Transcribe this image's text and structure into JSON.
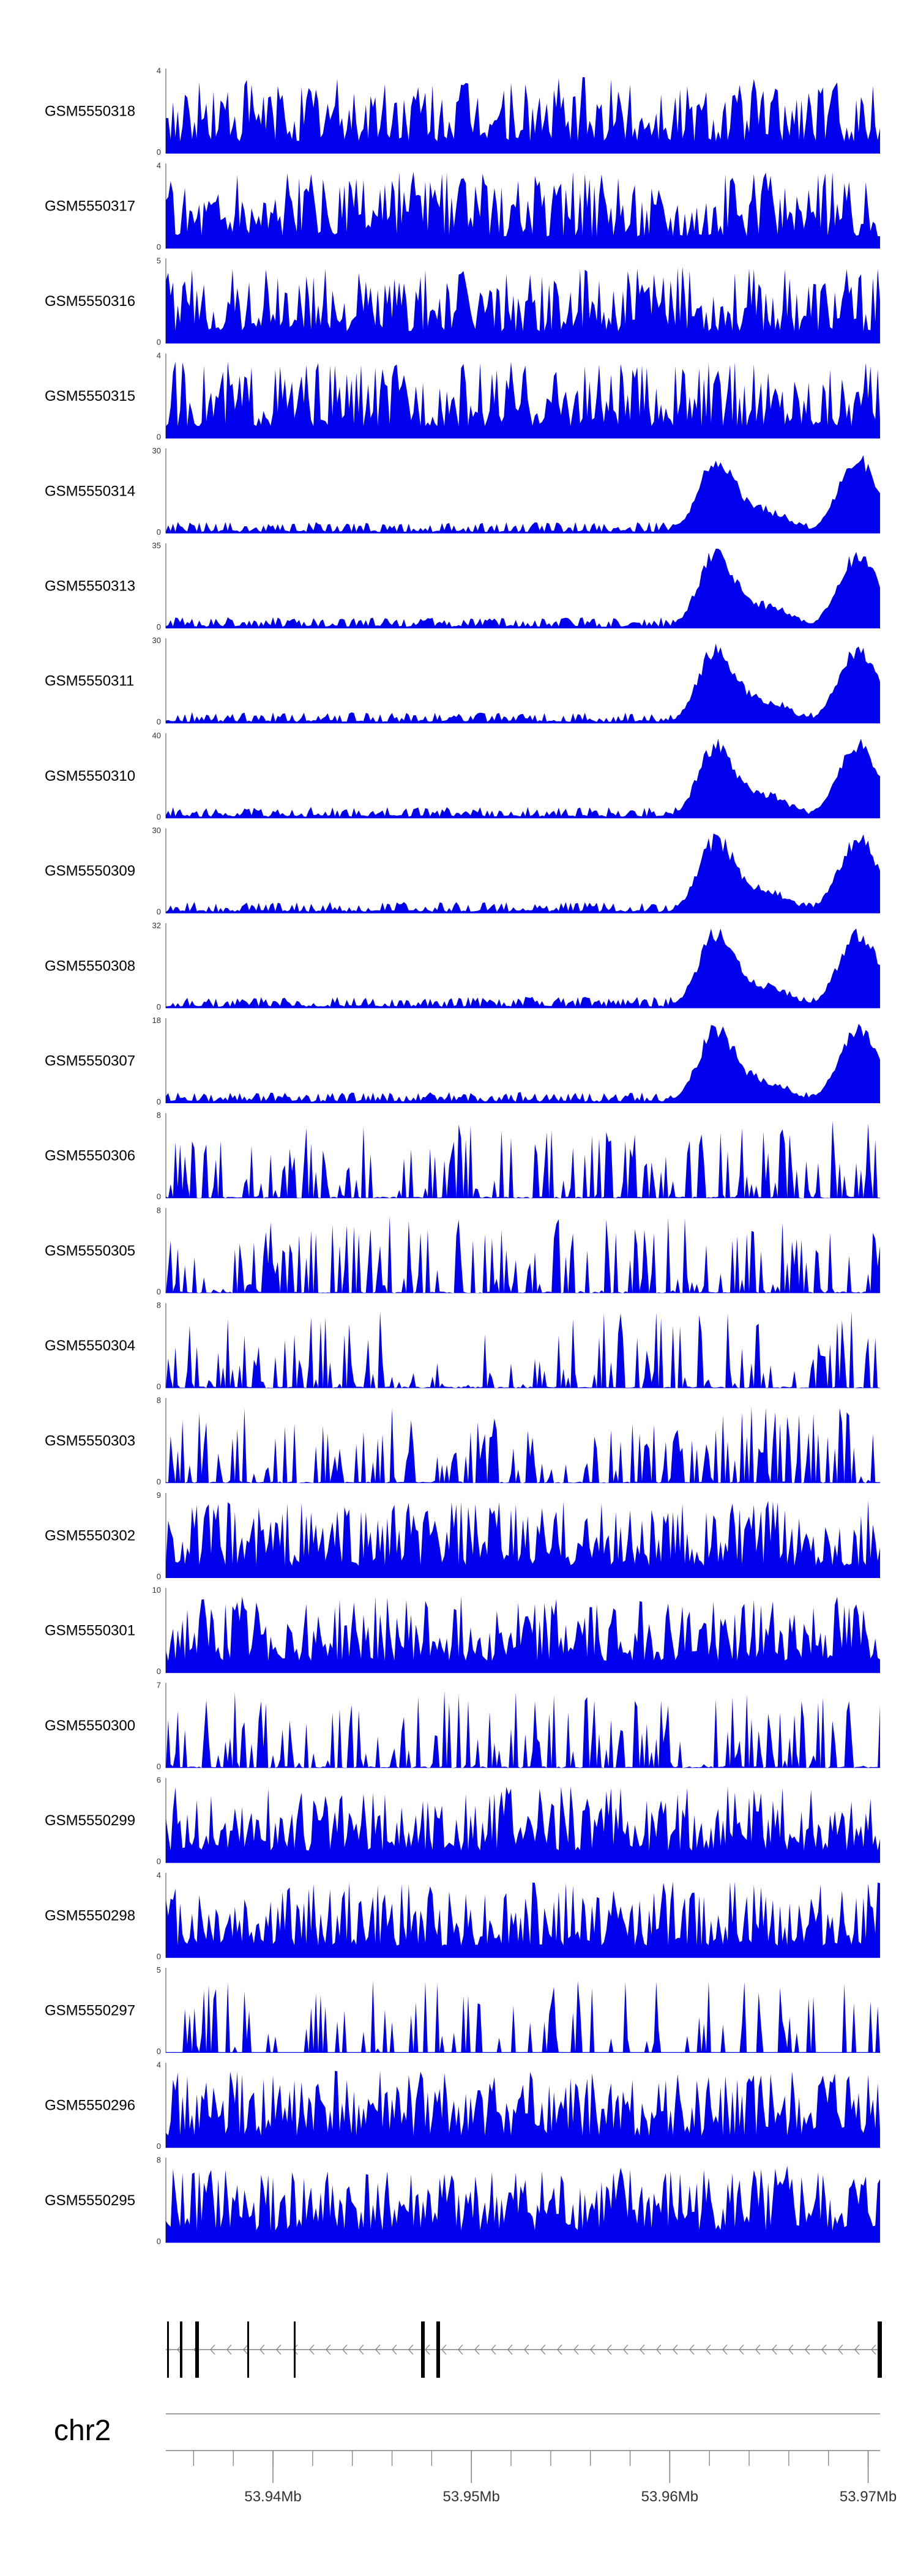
{
  "chart_data": {
    "type": "area",
    "fill_color": "#0000ee",
    "axis_color": "#808080",
    "x_range": [
      53.9346,
      53.9706
    ],
    "chromosome": "chr2",
    "axis_ticks": [
      "53.94Mb",
      "53.95Mb",
      "53.96Mb",
      "53.97Mb"
    ],
    "axis_tick_values": [
      53.94,
      53.95,
      53.96,
      53.97
    ],
    "tracks": [
      {
        "name": "GSM5550318",
        "ymax": "4",
        "ymin": "0",
        "scale": 4,
        "seed": 318,
        "pattern": "uniform"
      },
      {
        "name": "GSM5550317",
        "ymax": "4",
        "ymin": "0",
        "scale": 4,
        "seed": 317,
        "pattern": "uniform"
      },
      {
        "name": "GSM5550316",
        "ymax": "5",
        "ymin": "0",
        "scale": 5,
        "seed": 316,
        "pattern": "uniform"
      },
      {
        "name": "GSM5550315",
        "ymax": "4",
        "ymin": "0",
        "scale": 4,
        "seed": 315,
        "pattern": "uniform"
      },
      {
        "name": "GSM5550314",
        "ymax": "30",
        "ymin": "0",
        "scale": 30,
        "seed": 314,
        "pattern": "peaks"
      },
      {
        "name": "GSM5550313",
        "ymax": "35",
        "ymin": "0",
        "scale": 35,
        "seed": 313,
        "pattern": "peaks"
      },
      {
        "name": "GSM5550311",
        "ymax": "30",
        "ymin": "0",
        "scale": 30,
        "seed": 311,
        "pattern": "peaks"
      },
      {
        "name": "GSM5550310",
        "ymax": "40",
        "ymin": "0",
        "scale": 40,
        "seed": 310,
        "pattern": "peaks"
      },
      {
        "name": "GSM5550309",
        "ymax": "30",
        "ymin": "0",
        "scale": 30,
        "seed": 309,
        "pattern": "peaks"
      },
      {
        "name": "GSM5550308",
        "ymax": "32",
        "ymin": "0",
        "scale": 32,
        "seed": 308,
        "pattern": "peaks"
      },
      {
        "name": "GSM5550307",
        "ymax": "18",
        "ymin": "0",
        "scale": 18,
        "seed": 307,
        "pattern": "peaks"
      },
      {
        "name": "GSM5550306",
        "ymax": "8",
        "ymin": "0",
        "scale": 8,
        "seed": 306,
        "pattern": "sparse"
      },
      {
        "name": "GSM5550305",
        "ymax": "8",
        "ymin": "0",
        "scale": 8,
        "seed": 305,
        "pattern": "sparse"
      },
      {
        "name": "GSM5550304",
        "ymax": "8",
        "ymin": "0",
        "scale": 8,
        "seed": 304,
        "pattern": "sparse"
      },
      {
        "name": "GSM5550303",
        "ymax": "8",
        "ymin": "0",
        "scale": 8,
        "seed": 303,
        "pattern": "sparse"
      },
      {
        "name": "GSM5550302",
        "ymax": "9",
        "ymin": "0",
        "scale": 9,
        "seed": 302,
        "pattern": "uniform"
      },
      {
        "name": "GSM5550301",
        "ymax": "10",
        "ymin": "0",
        "scale": 10,
        "seed": 301,
        "pattern": "uniform"
      },
      {
        "name": "GSM5550300",
        "ymax": "7",
        "ymin": "0",
        "scale": 7,
        "seed": 300,
        "pattern": "sparse"
      },
      {
        "name": "GSM5550299",
        "ymax": "6",
        "ymin": "0",
        "scale": 6,
        "seed": 299,
        "pattern": "uniform"
      },
      {
        "name": "GSM5550298",
        "ymax": "4",
        "ymin": "0",
        "scale": 4,
        "seed": 298,
        "pattern": "uniform"
      },
      {
        "name": "GSM5550297",
        "ymax": "5",
        "ymin": "0",
        "scale": 5,
        "seed": 297,
        "pattern": "spikes"
      },
      {
        "name": "GSM5550296",
        "ymax": "4",
        "ymin": "0",
        "scale": 4,
        "seed": 296,
        "pattern": "uniform"
      },
      {
        "name": "GSM5550295",
        "ymax": "8",
        "ymin": "0",
        "scale": 8,
        "seed": 295,
        "pattern": "uniform"
      }
    ]
  }
}
